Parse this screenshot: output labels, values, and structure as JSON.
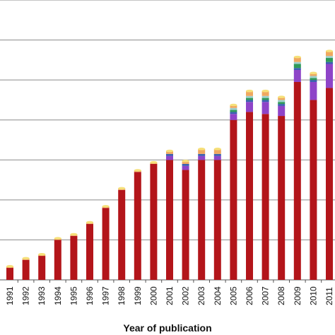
{
  "chart_data": {
    "type": "bar",
    "stacked": true,
    "title": "",
    "xlabel": "Year of publication",
    "ylabel": "",
    "ylim": [
      0,
      14
    ],
    "grid": true,
    "categories": [
      "1991",
      "1992",
      "1993",
      "1994",
      "1995",
      "1996",
      "1997",
      "1998",
      "1999",
      "2000",
      "2001",
      "2002",
      "2003",
      "2004",
      "2005",
      "2006",
      "2007",
      "2008",
      "2009",
      "2010",
      "2011"
    ],
    "series": [
      {
        "color": "#b3151a",
        "values": [
          0.6,
          1.0,
          1.2,
          2.0,
          2.2,
          2.8,
          3.6,
          4.5,
          5.4,
          5.8,
          6.0,
          5.5,
          6.0,
          6.0,
          8.0,
          8.4,
          8.3,
          8.2,
          9.9,
          9.0,
          9.6
        ]
      },
      {
        "color": "#8e44c8",
        "values": [
          0,
          0,
          0,
          0,
          0,
          0,
          0,
          0,
          0,
          0,
          0.2,
          0.2,
          0.2,
          0.2,
          0.3,
          0.5,
          0.6,
          0.5,
          0.6,
          0.9,
          1.2
        ]
      },
      {
        "color": "#3a5fb0",
        "values": [
          0,
          0,
          0,
          0,
          0,
          0,
          0,
          0,
          0,
          0,
          0.1,
          0.1,
          0.1,
          0.1,
          0.1,
          0.1,
          0.1,
          0.1,
          0.1,
          0.1,
          0.1
        ]
      },
      {
        "color": "#2e9a58",
        "values": [
          0,
          0,
          0,
          0,
          0,
          0,
          0,
          0,
          0,
          0,
          0,
          0,
          0,
          0,
          0.1,
          0.1,
          0.1,
          0.1,
          0.2,
          0.1,
          0.2
        ]
      },
      {
        "color": "#9fd0cc",
        "values": [
          0,
          0,
          0,
          0,
          0,
          0,
          0,
          0,
          0,
          0,
          0,
          0,
          0,
          0,
          0.1,
          0.1,
          0.1,
          0.1,
          0.1,
          0.1,
          0.1
        ]
      },
      {
        "color": "#f0a860",
        "values": [
          0.04,
          0.04,
          0.04,
          0.04,
          0.04,
          0.04,
          0.04,
          0.04,
          0.04,
          0.04,
          0.1,
          0.1,
          0.2,
          0.2,
          0.1,
          0.2,
          0.2,
          0.1,
          0.2,
          0.1,
          0.2
        ]
      },
      {
        "color": "#f3d34a",
        "values": [
          0.04,
          0.04,
          0.04,
          0.04,
          0.04,
          0.04,
          0.04,
          0.04,
          0.04,
          0.04,
          0.05,
          0.05,
          0.05,
          0.05,
          0.05,
          0.05,
          0.05,
          0.05,
          0.05,
          0.05,
          0.05
        ]
      }
    ]
  }
}
